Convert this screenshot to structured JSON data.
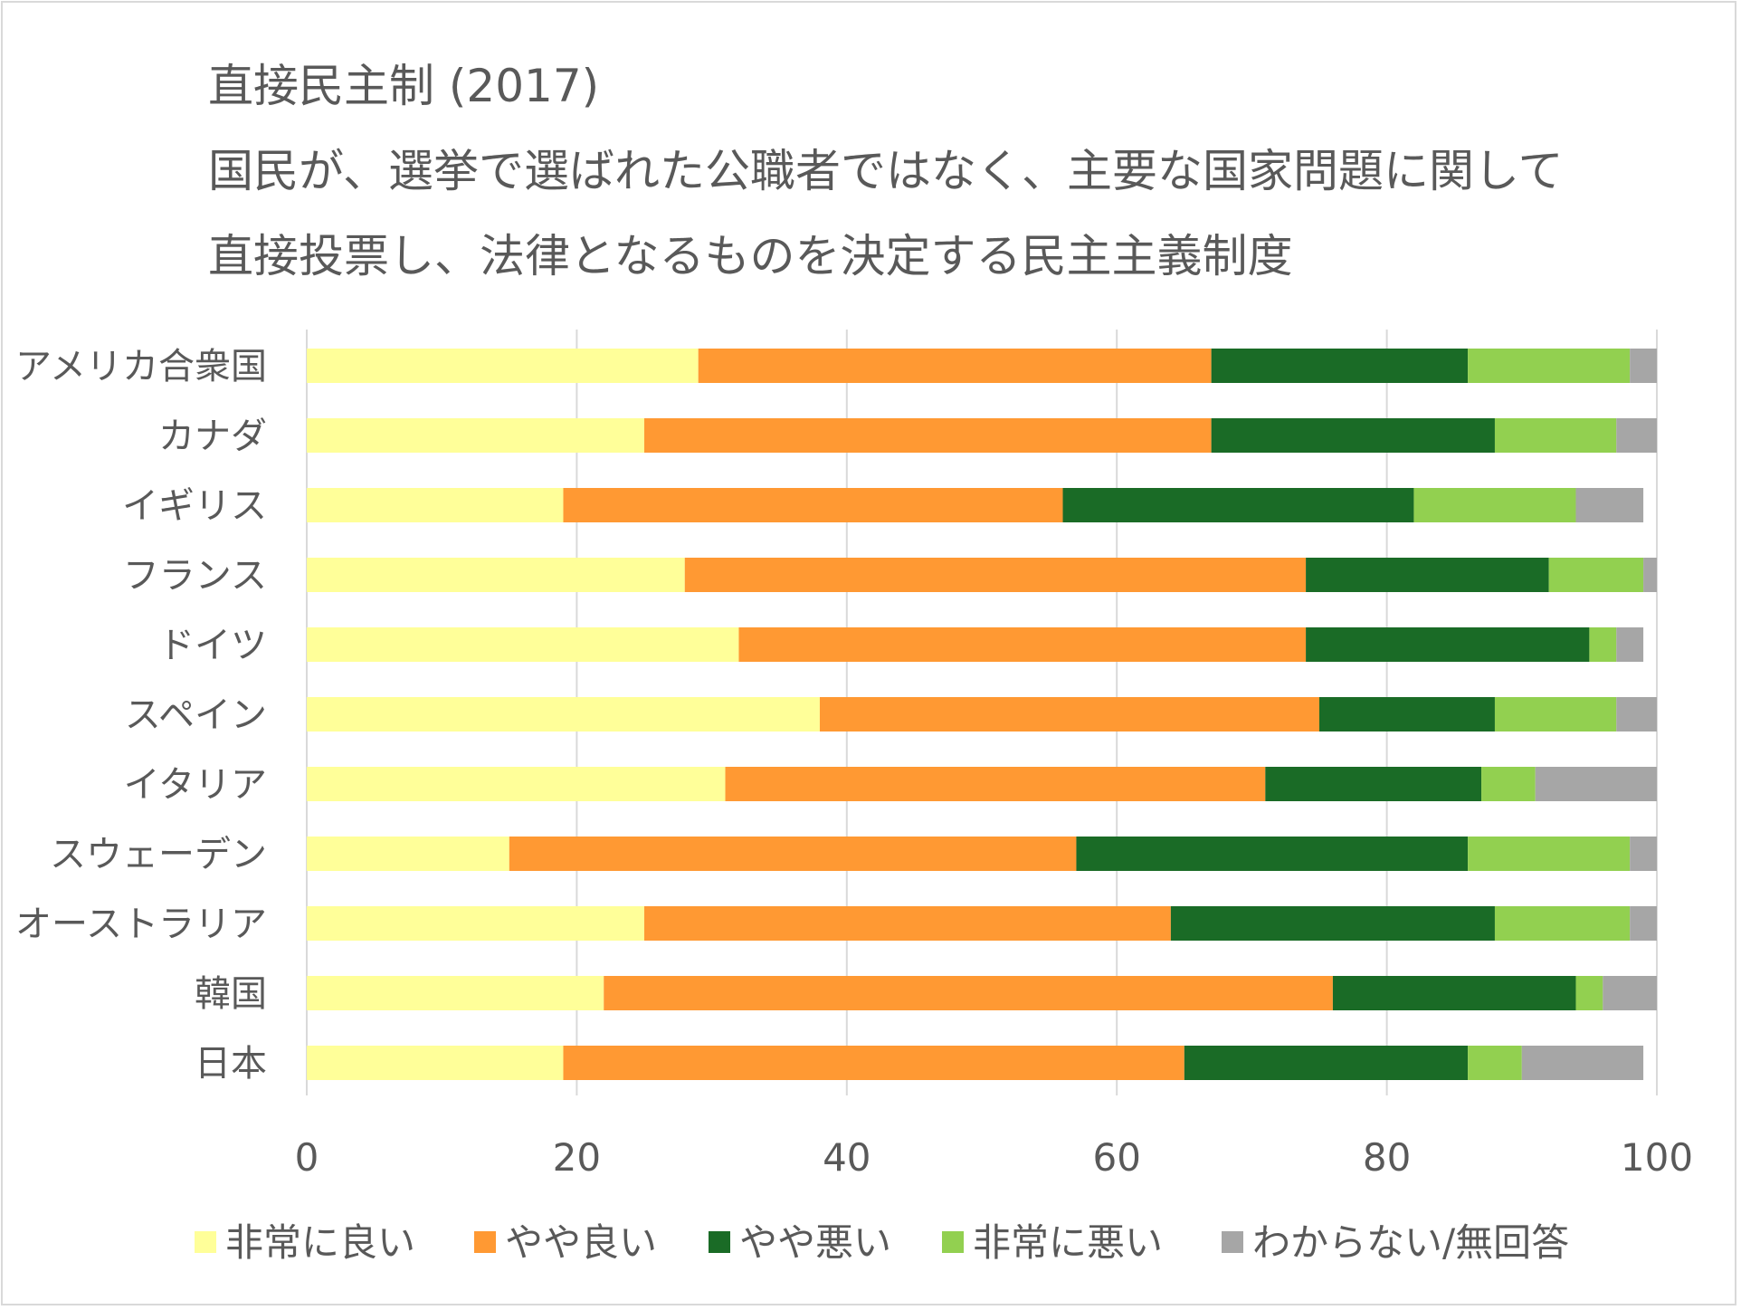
{
  "chart_data": {
    "type": "bar",
    "orientation": "horizontal",
    "stacked": true,
    "title": "直接民主制 (2017)",
    "subtitle_lines": [
      "国民が、選挙で選ばれた公職者ではなく、主要な国家問題に関して",
      "直接投票し、法律となるものを決定する民主主義制度"
    ],
    "categories": [
      "アメリカ合衆国",
      "カナダ",
      "イギリス",
      "フランス",
      "ドイツ",
      "スペイン",
      "イタリア",
      "スウェーデン",
      "オーストラリア",
      "韓国",
      "日本"
    ],
    "series": [
      {
        "name": "非常に良い",
        "color": "#ffff99",
        "values": [
          29,
          25,
          19,
          28,
          32,
          38,
          31,
          15,
          25,
          22,
          19
        ]
      },
      {
        "name": "やや良い",
        "color": "#ff9933",
        "values": [
          38,
          42,
          37,
          46,
          42,
          37,
          40,
          42,
          39,
          54,
          46
        ]
      },
      {
        "name": "やや悪い",
        "color": "#1a6b26",
        "values": [
          19,
          21,
          26,
          18,
          21,
          13,
          16,
          29,
          24,
          18,
          21
        ]
      },
      {
        "name": "非常に悪い",
        "color": "#92d050",
        "values": [
          12,
          9,
          12,
          7,
          2,
          9,
          4,
          12,
          10,
          2,
          4
        ]
      },
      {
        "name": "わからない/無回答",
        "color": "#a6a6a6",
        "values": [
          2,
          3,
          5,
          1,
          2,
          3,
          9,
          2,
          2,
          4,
          9
        ]
      }
    ],
    "xlim": [
      0,
      100
    ],
    "xticks": [
      0,
      20,
      40,
      60,
      80,
      100
    ],
    "grid": "vertical",
    "legend_position": "bottom"
  }
}
